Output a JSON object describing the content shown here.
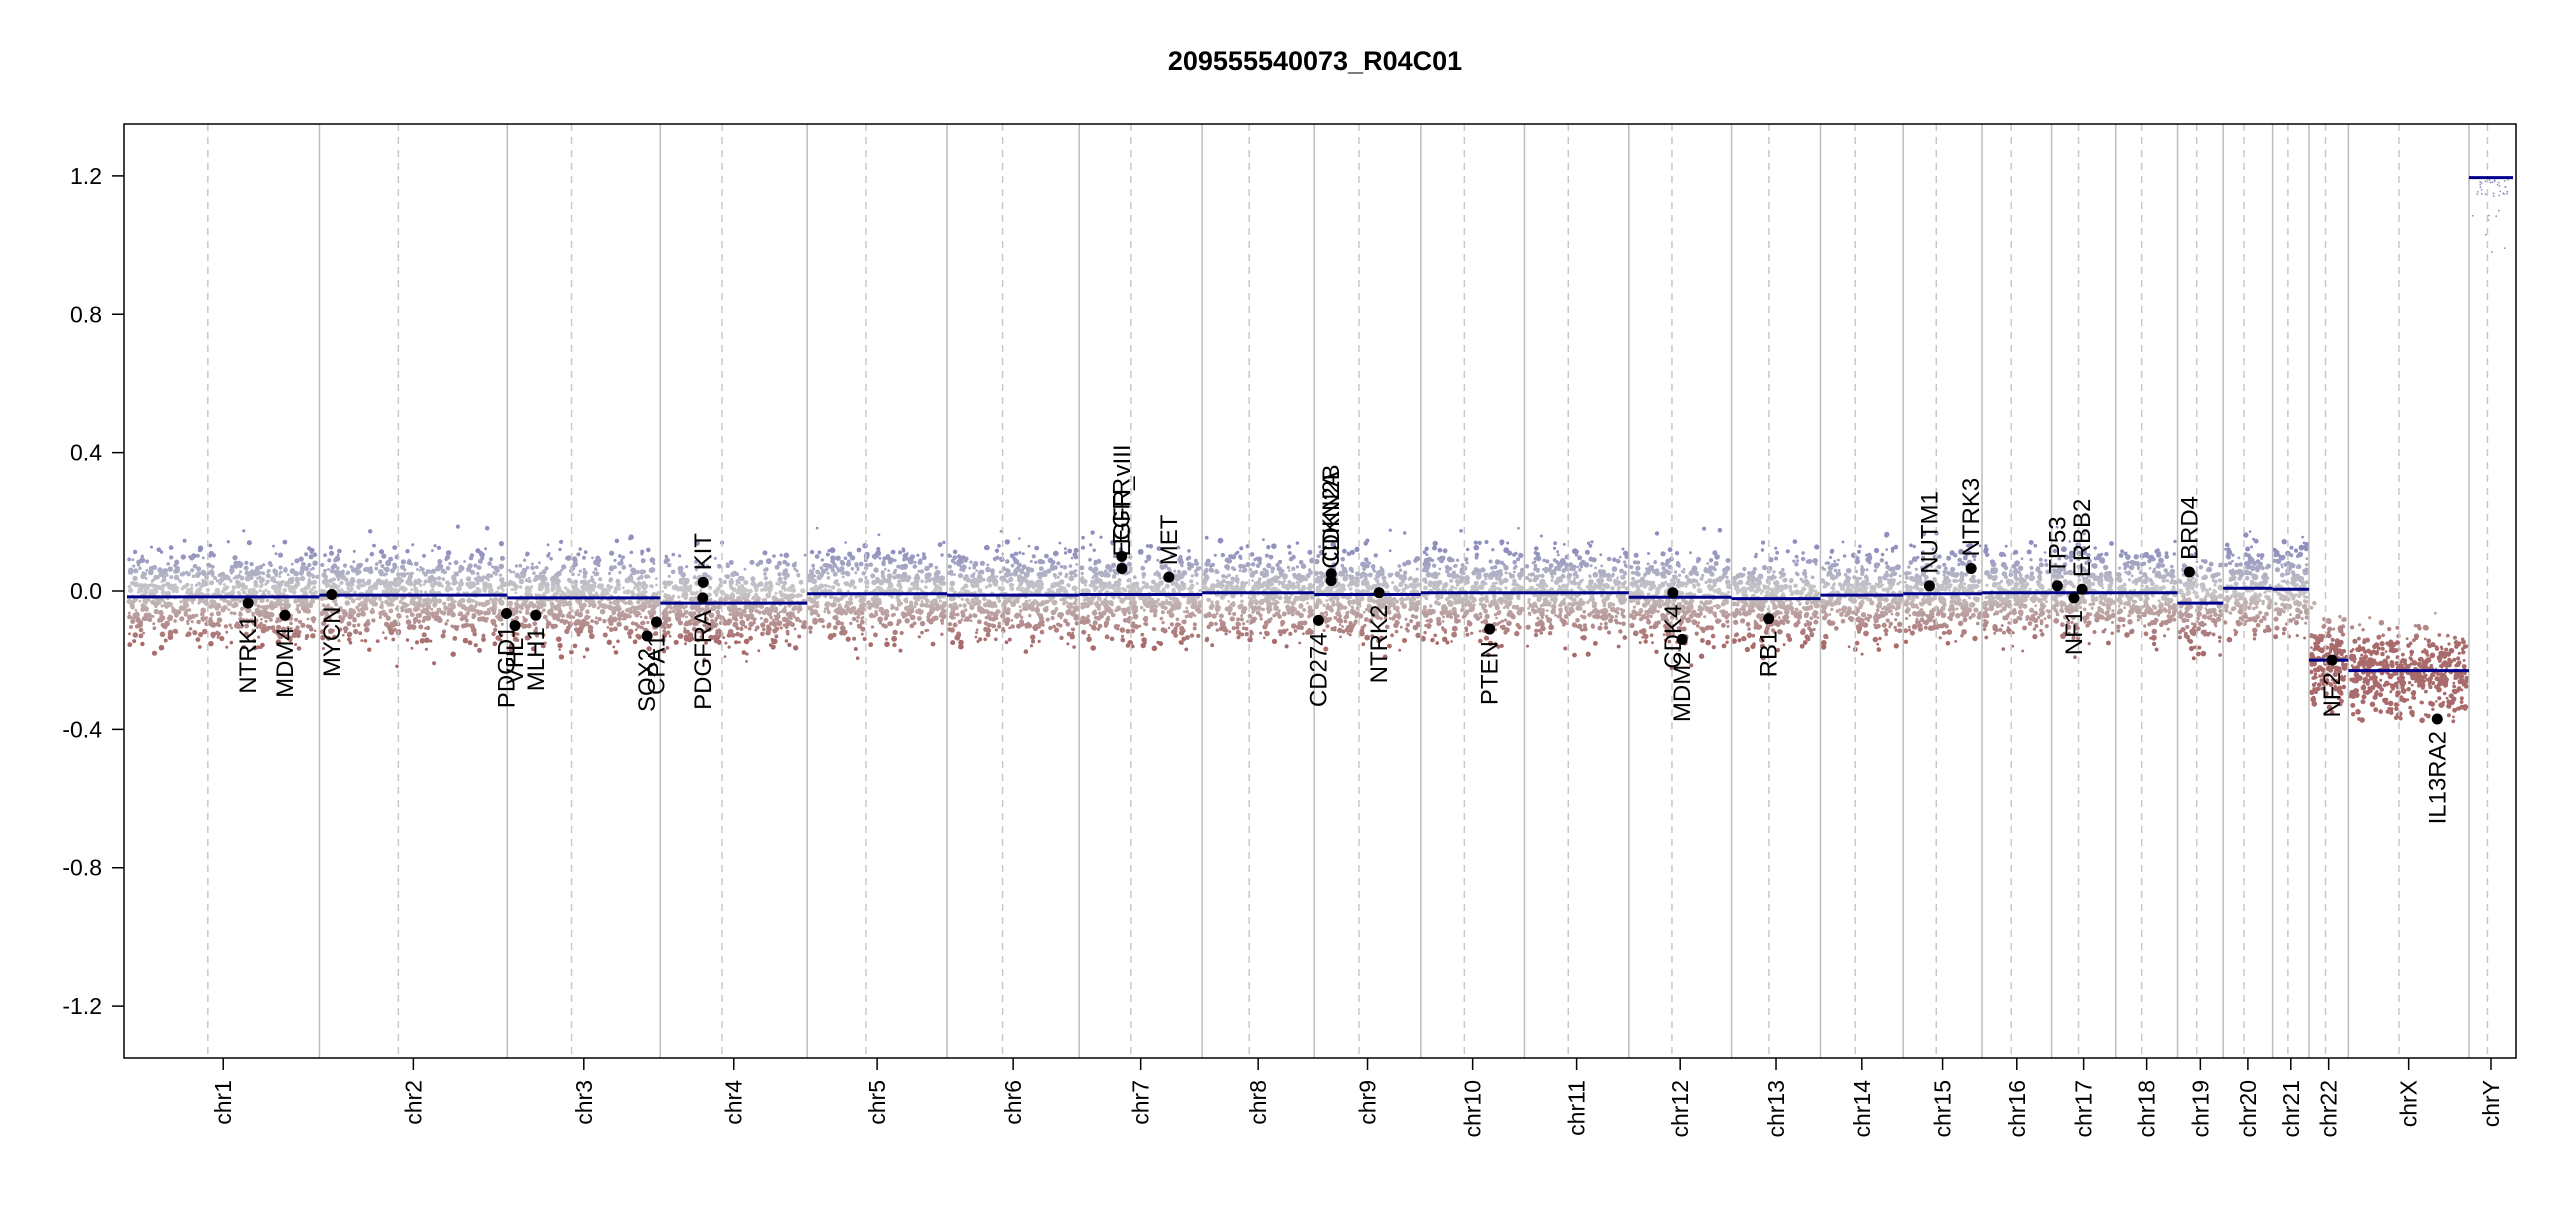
{
  "chart_data": {
    "type": "scatter",
    "title": "209555540073_R04C01",
    "xlabel": "",
    "ylabel": "",
    "ylim": [
      -1.35,
      1.35
    ],
    "y_ticks": [
      "-1.2",
      "-0.8",
      "-0.4",
      "0.0",
      "0.4",
      "0.8",
      "1.2"
    ],
    "y_tick_values": [
      -1.2,
      -0.8,
      -0.4,
      0.0,
      0.4,
      0.8,
      1.2
    ],
    "x_unit": "genome position (Mb, chromosomes concatenated)",
    "chromosomes": [
      {
        "name": "chr1",
        "length": 249,
        "segment": -0.017
      },
      {
        "name": "chr2",
        "length": 243,
        "segment": -0.012
      },
      {
        "name": "chr3",
        "length": 198,
        "segment": -0.02
      },
      {
        "name": "chr4",
        "length": 190,
        "segment": -0.035
      },
      {
        "name": "chr5",
        "length": 181,
        "segment": -0.008
      },
      {
        "name": "chr6",
        "length": 171,
        "segment": -0.012
      },
      {
        "name": "chr7",
        "length": 159,
        "segment": -0.01
      },
      {
        "name": "chr8",
        "length": 145,
        "segment": -0.005
      },
      {
        "name": "chr9",
        "length": 138,
        "segment": -0.01
      },
      {
        "name": "chr10",
        "length": 134,
        "segment": -0.005
      },
      {
        "name": "chr11",
        "length": 135,
        "segment": -0.005
      },
      {
        "name": "chr12",
        "length": 133,
        "segment": -0.018
      },
      {
        "name": "chr13",
        "length": 115,
        "segment": -0.022
      },
      {
        "name": "chr14",
        "length": 107,
        "segment": -0.012
      },
      {
        "name": "chr15",
        "length": 102,
        "segment": -0.008
      },
      {
        "name": "chr16",
        "length": 90,
        "segment": -0.005
      },
      {
        "name": "chr17",
        "length": 83,
        "segment": -0.005
      },
      {
        "name": "chr18",
        "length": 80,
        "segment": -0.005
      },
      {
        "name": "chr19",
        "length": 59,
        "segment": -0.035
      },
      {
        "name": "chr20",
        "length": 64,
        "segment": 0.008
      },
      {
        "name": "chr21",
        "length": 47,
        "segment": 0.005
      },
      {
        "name": "chr22",
        "length": 51,
        "segment": -0.2
      },
      {
        "name": "chrX",
        "length": 156,
        "segment": -0.23
      },
      {
        "name": "chrY",
        "length": 57,
        "segment": 1.195
      }
    ],
    "genes": [
      {
        "name": "NTRK1",
        "chr": "chr1",
        "pos": 156.8,
        "value": -0.035,
        "label_side": "below"
      },
      {
        "name": "MDM4",
        "chr": "chr1",
        "pos": 204.5,
        "value": -0.07,
        "label_side": "below"
      },
      {
        "name": "MYCN",
        "chr": "chr2",
        "pos": 16.0,
        "value": -0.01,
        "label_side": "below"
      },
      {
        "name": "PDGD1",
        "chr": "chr2",
        "pos": 242.0,
        "value": -0.065,
        "label_side": "below"
      },
      {
        "name": "VHL",
        "chr": "chr3",
        "pos": 10.0,
        "value": -0.1,
        "label_side": "below"
      },
      {
        "name": "MLH1",
        "chr": "chr3",
        "pos": 37.0,
        "value": -0.07,
        "label_side": "below"
      },
      {
        "name": "SOX2",
        "chr": "chr3",
        "pos": 181.0,
        "value": -0.13,
        "label_side": "below"
      },
      {
        "name": "CPA1",
        "chr": "chr3",
        "pos": 193.0,
        "value": -0.09,
        "label_side": "below"
      },
      {
        "name": "PDGFRA",
        "chr": "chr4",
        "pos": 55.0,
        "value": -0.02,
        "label_side": "below"
      },
      {
        "name": "KIT",
        "chr": "chr4",
        "pos": 55.5,
        "value": 0.025,
        "label_side": "above"
      },
      {
        "name": "EGFR",
        "chr": "chr7",
        "pos": 55.0,
        "value": 0.1,
        "label_side": "above"
      },
      {
        "name": "EGFR_vIII",
        "chr": "chr7",
        "pos": 55.2,
        "value": 0.065,
        "label_side": "above"
      },
      {
        "name": "MET",
        "chr": "chr7",
        "pos": 116.0,
        "value": 0.04,
        "label_side": "above"
      },
      {
        "name": "CD274",
        "chr": "chr9",
        "pos": 5.5,
        "value": -0.085,
        "label_side": "below"
      },
      {
        "name": "CDKN2A",
        "chr": "chr9",
        "pos": 21.9,
        "value": 0.03,
        "label_side": "above"
      },
      {
        "name": "CDKN2B",
        "chr": "chr9",
        "pos": 22.0,
        "value": 0.05,
        "label_side": "above"
      },
      {
        "name": "NTRK2",
        "chr": "chr9",
        "pos": 84.0,
        "value": -0.005,
        "label_side": "below"
      },
      {
        "name": "PTEN",
        "chr": "chr10",
        "pos": 89.0,
        "value": -0.11,
        "label_side": "below"
      },
      {
        "name": "CDK4",
        "chr": "chr12",
        "pos": 57.0,
        "value": -0.005,
        "label_side": "below"
      },
      {
        "name": "MDM2",
        "chr": "chr12",
        "pos": 69.0,
        "value": -0.14,
        "label_side": "below"
      },
      {
        "name": "RB1",
        "chr": "chr13",
        "pos": 48.0,
        "value": -0.08,
        "label_side": "below"
      },
      {
        "name": "NUTM1",
        "chr": "chr15",
        "pos": 34.0,
        "value": 0.015,
        "label_side": "above"
      },
      {
        "name": "NTRK3",
        "chr": "chr15",
        "pos": 88.0,
        "value": 0.065,
        "label_side": "above"
      },
      {
        "name": "TP53",
        "chr": "chr17",
        "pos": 7.5,
        "value": 0.015,
        "label_side": "above"
      },
      {
        "name": "NF1",
        "chr": "chr17",
        "pos": 29.0,
        "value": -0.02,
        "label_side": "below"
      },
      {
        "name": "ERBB2",
        "chr": "chr17",
        "pos": 39.5,
        "value": 0.005,
        "label_side": "above"
      },
      {
        "name": "BRD4",
        "chr": "chr19",
        "pos": 15.3,
        "value": 0.055,
        "label_side": "above"
      },
      {
        "name": "NF2",
        "chr": "chr22",
        "pos": 30.0,
        "value": -0.2,
        "label_side": "below"
      },
      {
        "name": "IL13RA2",
        "chr": "chrX",
        "pos": 115.0,
        "value": -0.37,
        "label_side": "below"
      }
    ],
    "colors": {
      "segment": "#00008b",
      "gain": "#8e8ebf",
      "loss": "#a86a6a",
      "neutral": "#c8c8c8",
      "chrom_line": "#bdbdbd",
      "centromere_line": "#c8c8c8",
      "gene_point": "#000000"
    },
    "grid": false,
    "legend": "none"
  }
}
